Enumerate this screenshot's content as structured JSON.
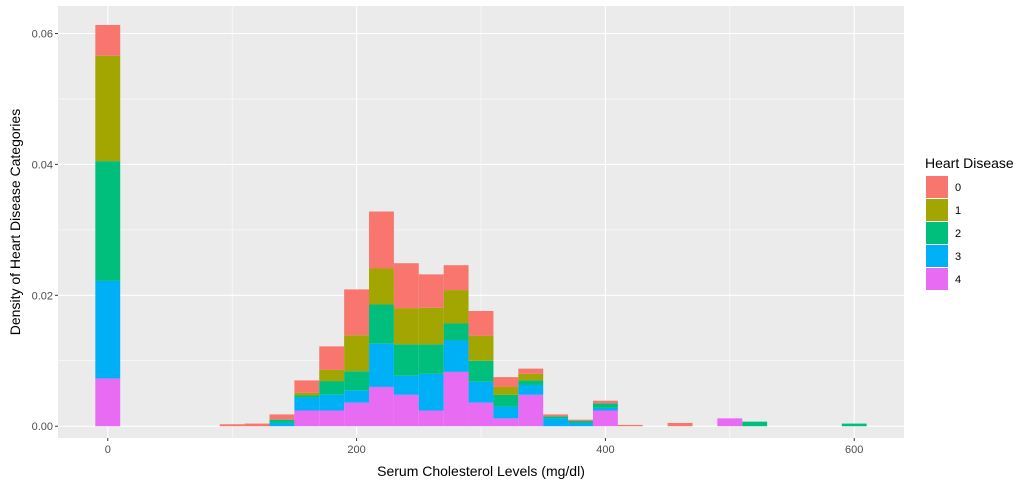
{
  "chart_data": {
    "type": "bar",
    "stacked": true,
    "xlabel": "Serum Cholesterol Levels (mg/dl)",
    "ylabel": "Density of Heart Disease Categories",
    "xlim": [
      -40,
      640
    ],
    "ylim": [
      -0.0018,
      0.0642
    ],
    "x_ticks": [
      0,
      200,
      400,
      600
    ],
    "y_ticks": [
      0.0,
      0.02,
      0.04,
      0.06
    ],
    "x_tick_labels": [
      "0",
      "200",
      "400",
      "600"
    ],
    "y_tick_labels": [
      "0.00",
      "0.02",
      "0.04",
      "0.06"
    ],
    "bin_width": 20,
    "bin_centers": [
      0,
      100,
      120,
      140,
      160,
      180,
      200,
      220,
      240,
      260,
      280,
      300,
      320,
      340,
      360,
      380,
      400,
      420,
      460,
      500,
      520,
      600
    ],
    "series": [
      {
        "name": "4",
        "color": "#E76BF3",
        "values": [
          0.0073,
          0,
          0,
          0,
          0.0024,
          0.0024,
          0.0036,
          0.006,
          0.0048,
          0.0024,
          0.0083,
          0.0036,
          0.0012,
          0.0048,
          0,
          0,
          0.0024,
          0,
          0,
          0.0012,
          0,
          0
        ]
      },
      {
        "name": "3",
        "color": "#00B0F6",
        "values": [
          0.0149,
          0,
          0,
          0.0005,
          0.002,
          0.0024,
          0.0019,
          0.0066,
          0.0029,
          0.0056,
          0.0048,
          0.0032,
          0.0018,
          0.0015,
          0.0012,
          0.0005,
          0.0004,
          0,
          0,
          0,
          0,
          0
        ]
      },
      {
        "name": "2",
        "color": "#00BF7D",
        "values": [
          0.0183,
          0,
          0,
          0.0005,
          0.0003,
          0.0021,
          0.0029,
          0.006,
          0.0048,
          0.0045,
          0.0026,
          0.0032,
          0.0018,
          0.0007,
          0.0003,
          0.0003,
          0.0007,
          0,
          0,
          0,
          0.0007,
          0.0004
        ]
      },
      {
        "name": "1",
        "color": "#A3A500",
        "values": [
          0.0161,
          0,
          0,
          0,
          0.0004,
          0.0017,
          0.0055,
          0.0055,
          0.0055,
          0.0056,
          0.0051,
          0.0038,
          0.0012,
          0.001,
          0,
          0,
          0,
          0,
          0,
          0,
          0,
          0
        ]
      },
      {
        "name": "0",
        "color": "#F8766D",
        "values": [
          0.0047,
          0.0003,
          0.0004,
          0.0008,
          0.0019,
          0.0036,
          0.007,
          0.0087,
          0.0069,
          0.0051,
          0.0038,
          0.0038,
          0.0015,
          0.0008,
          0.0003,
          0.0002,
          0.0004,
          0.0002,
          0.0005,
          0,
          0,
          0
        ]
      }
    ],
    "legend_title": "Heart Disease",
    "legend_order": [
      "0",
      "1",
      "2",
      "3",
      "4"
    ],
    "legend_placement": "right",
    "grid": true,
    "panel_background": "#EBEBEB",
    "grid_color": "#FFFFFF"
  }
}
